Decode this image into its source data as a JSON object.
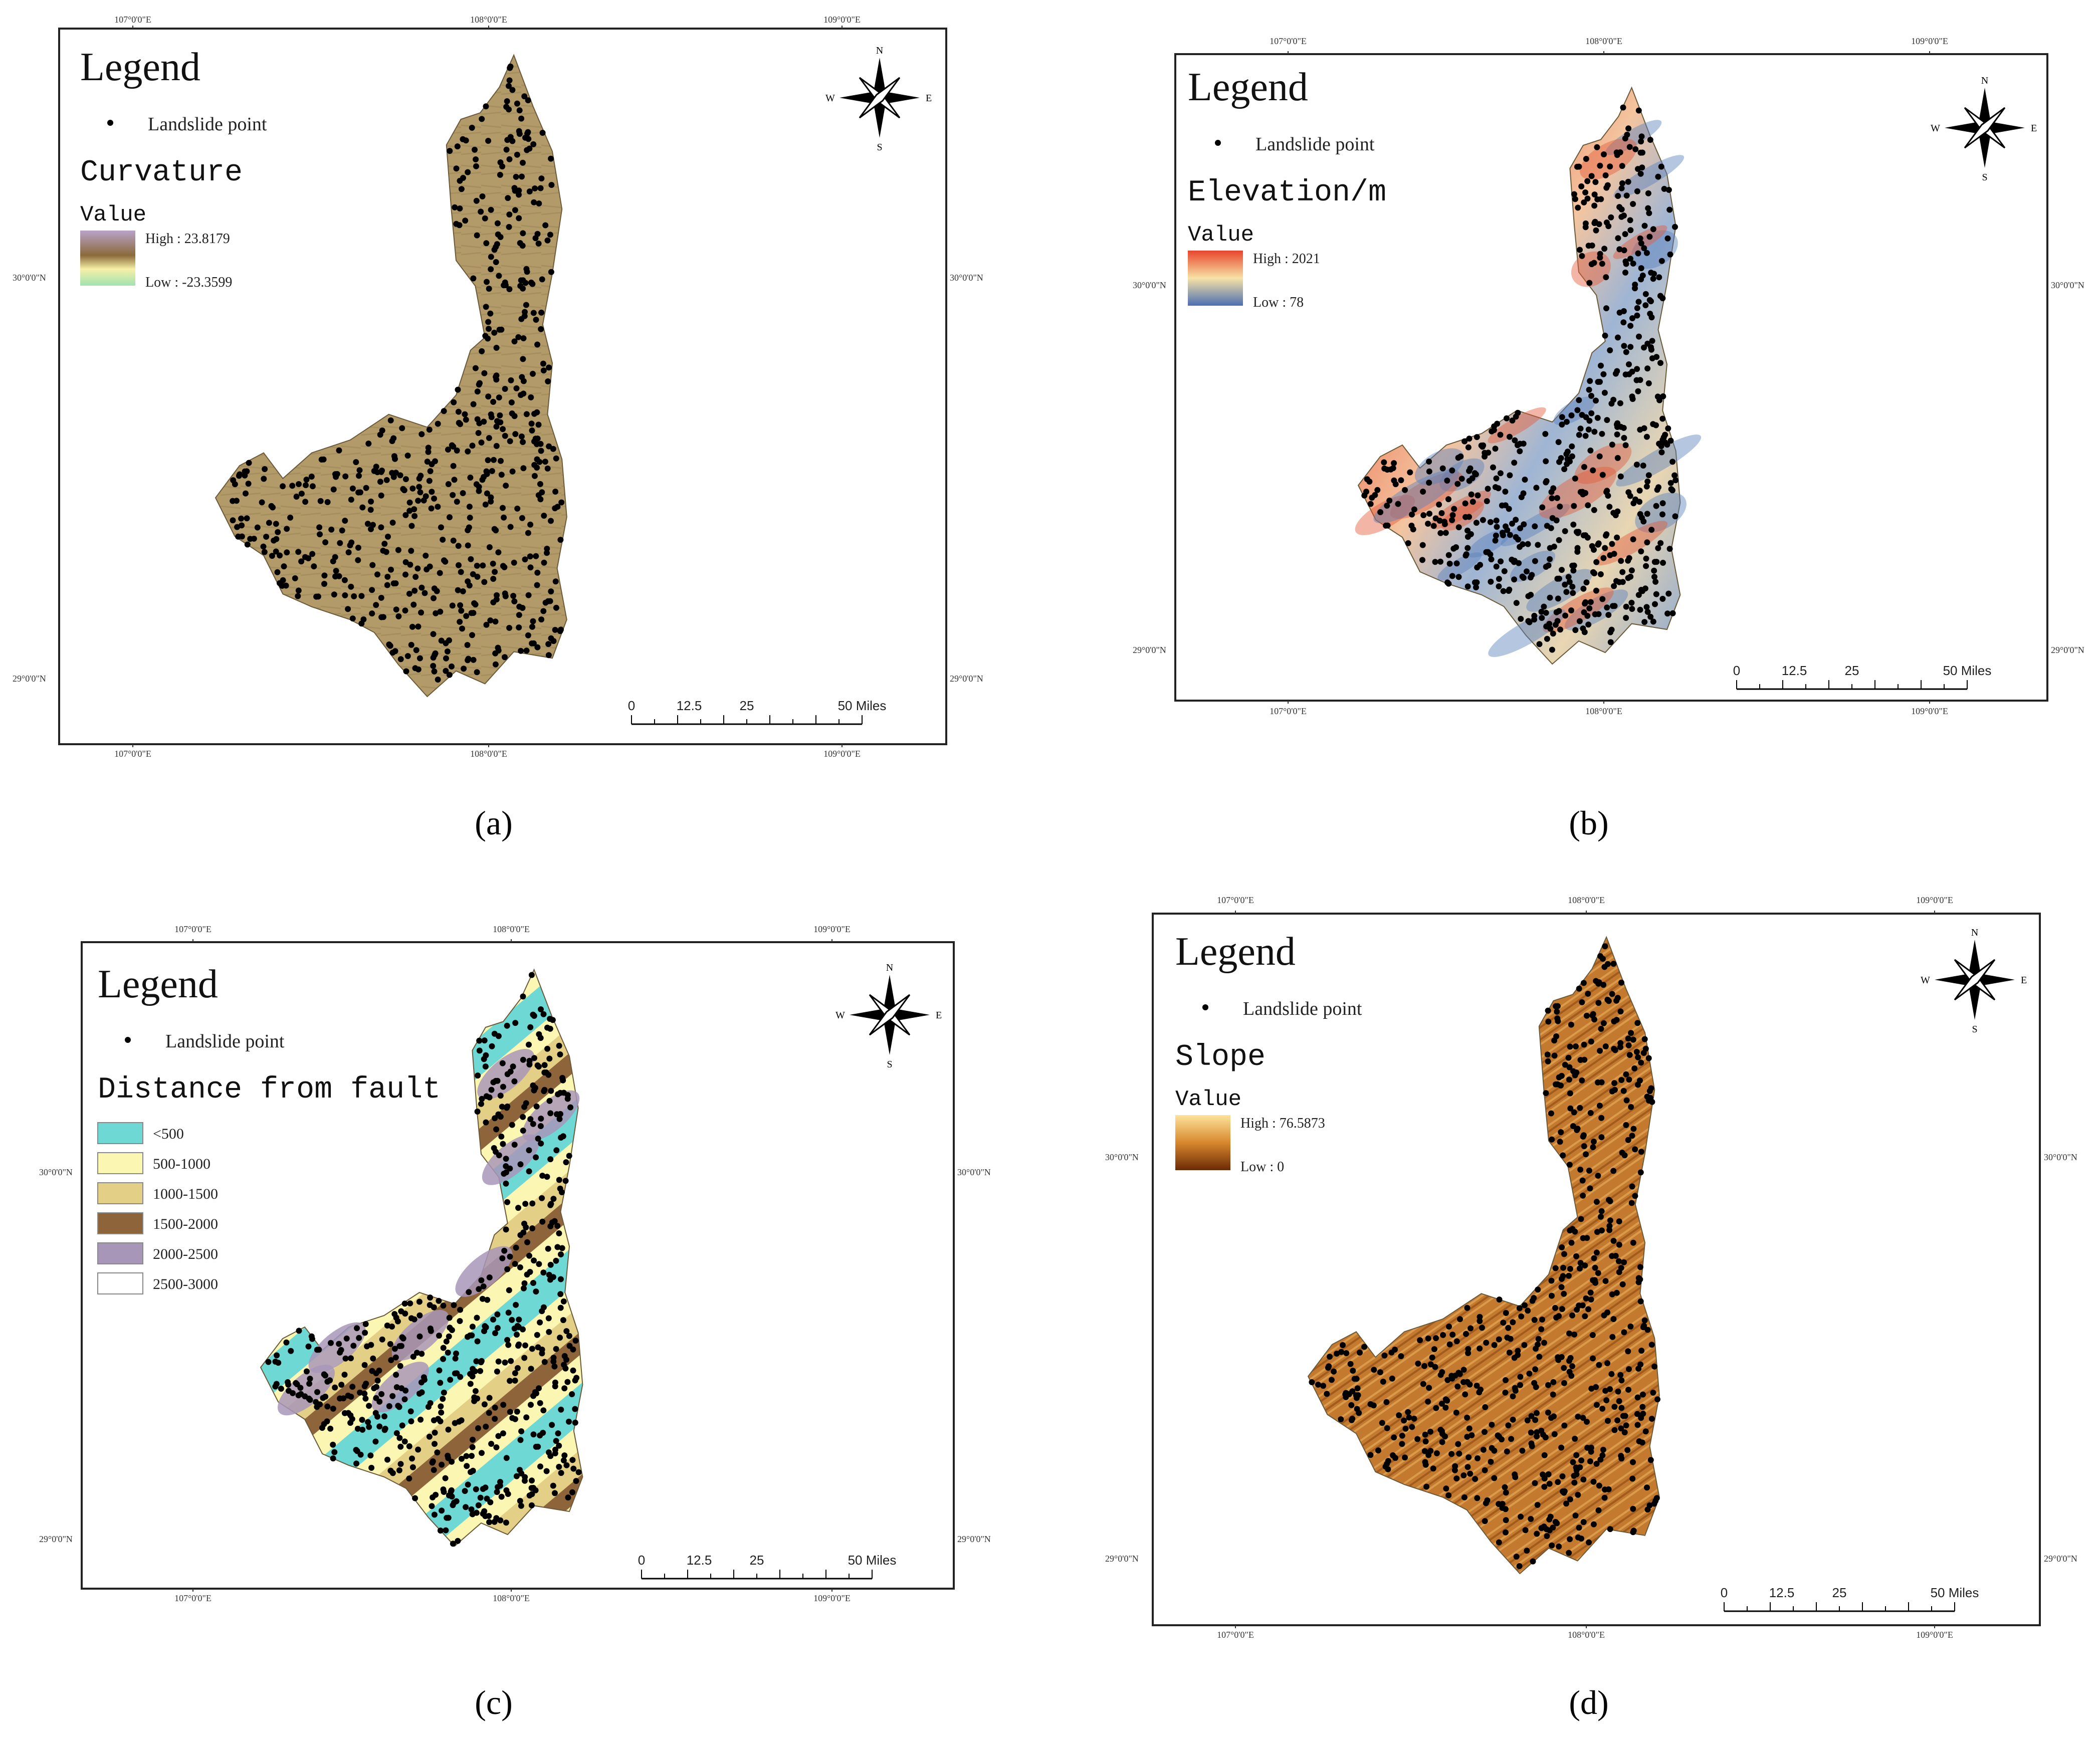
{
  "panels": [
    {
      "id": "a",
      "caption": "(a)",
      "legend_title": "Legend",
      "point_label": "Landslide point",
      "layer_title": "Curvature",
      "value_label": "Value",
      "high_label": "High : 23.8179",
      "low_label": "Low : -23.3599",
      "lon_labels": [
        "107°0'0\"E",
        "108°0'0\"E",
        "109°0'0\"E"
      ],
      "lat_labels": [
        "30°0'0\"N",
        "29°0'0\"N"
      ],
      "scale_labels": [
        "0",
        "12.5",
        "25",
        "50 Miles"
      ],
      "compass": [
        "N",
        "E",
        "S",
        "W"
      ],
      "ramp": [
        "#b9a3c9",
        "#8a6a3a",
        "#f7f0a8",
        "#9fe3b0"
      ],
      "fill": "#b09a6a"
    },
    {
      "id": "b",
      "caption": "(b)",
      "legend_title": "Legend",
      "point_label": "Landslide point",
      "layer_title": "Elevation/m",
      "value_label": "Value",
      "high_label": "High : 2021",
      "low_label": "Low : 78",
      "lon_labels": [
        "107°0'0\"E",
        "108°0'0\"E",
        "109°0'0\"E"
      ],
      "lat_labels": [
        "30°0'0\"N",
        "29°0'0\"N"
      ],
      "scale_labels": [
        "0",
        "12.5",
        "25",
        "50 Miles"
      ],
      "compass": [
        "N",
        "E",
        "S",
        "W"
      ],
      "ramp": [
        "#e8452c",
        "#f7e2a6",
        "#4b6fb2"
      ],
      "fill": "#f0c7a0"
    },
    {
      "id": "c",
      "caption": "(c)",
      "legend_title": "Legend",
      "point_label": "Landslide point",
      "layer_title": "Distance from fault",
      "classes": [
        {
          "label": "<500",
          "color": "#6ed8d4"
        },
        {
          "label": "500-1000",
          "color": "#fbf6b1"
        },
        {
          "label": "1000-1500",
          "color": "#e3cf86"
        },
        {
          "label": "1500-2000",
          "color": "#8e653a"
        },
        {
          "label": "2000-2500",
          "color": "#a896b8"
        },
        {
          "label": "2500-3000",
          "color": "#ffffff"
        }
      ],
      "lon_labels": [
        "107°0'0\"E",
        "108°0'0\"E",
        "109°0'0\"E"
      ],
      "lat_labels": [
        "30°0'0\"N",
        "29°0'0\"N"
      ],
      "scale_labels": [
        "0",
        "12.5",
        "25",
        "50 Miles"
      ],
      "compass": [
        "N",
        "E",
        "S",
        "W"
      ]
    },
    {
      "id": "d",
      "caption": "(d)",
      "legend_title": "Legend",
      "point_label": "Landslide point",
      "layer_title": "Slope",
      "value_label": "Value",
      "high_label": "High : 76.5873",
      "low_label": "Low : 0",
      "lon_labels": [
        "107°0'0\"E",
        "108°0'0\"E",
        "109°0'0\"E"
      ],
      "lat_labels": [
        "30°0'0\"N",
        "29°0'0\"N"
      ],
      "scale_labels": [
        "0",
        "12.5",
        "25",
        "50 Miles"
      ],
      "compass": [
        "N",
        "E",
        "S",
        "W"
      ],
      "ramp": [
        "#fde39a",
        "#d8882e",
        "#6b2a05"
      ],
      "fill": "#c77a2c"
    }
  ]
}
